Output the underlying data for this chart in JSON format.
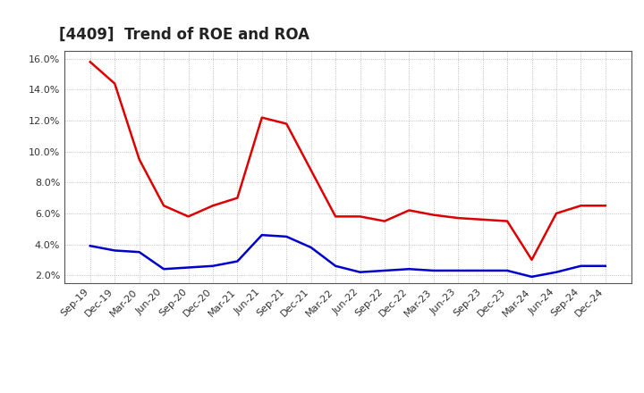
{
  "title": "[4409]  Trend of ROE and ROA",
  "labels": [
    "Sep-19",
    "Dec-19",
    "Mar-20",
    "Jun-20",
    "Sep-20",
    "Dec-20",
    "Mar-21",
    "Jun-21",
    "Sep-21",
    "Dec-21",
    "Mar-22",
    "Jun-22",
    "Sep-22",
    "Dec-22",
    "Mar-23",
    "Jun-23",
    "Sep-23",
    "Dec-23",
    "Mar-24",
    "Jun-24",
    "Sep-24",
    "Dec-24"
  ],
  "ROE": [
    15.8,
    14.4,
    9.5,
    6.5,
    5.8,
    6.5,
    7.0,
    12.2,
    11.8,
    8.8,
    5.8,
    5.8,
    5.5,
    6.2,
    5.9,
    5.7,
    5.6,
    5.5,
    3.0,
    6.0,
    6.5,
    6.5
  ],
  "ROA": [
    3.9,
    3.6,
    3.5,
    2.4,
    2.5,
    2.6,
    2.9,
    4.6,
    4.5,
    3.8,
    2.6,
    2.2,
    2.3,
    2.4,
    2.3,
    2.3,
    2.3,
    2.3,
    1.9,
    2.2,
    2.6,
    2.6
  ],
  "roe_color": "#dd0000",
  "roa_color": "#0000cc",
  "ylim_min": 1.5,
  "ylim_max": 16.5,
  "yticks": [
    2.0,
    4.0,
    6.0,
    8.0,
    10.0,
    12.0,
    14.0,
    16.0
  ],
  "background_color": "#ffffff",
  "grid_color": "#999999",
  "title_fontsize": 12,
  "axis_fontsize": 8,
  "legend_fontsize": 10
}
